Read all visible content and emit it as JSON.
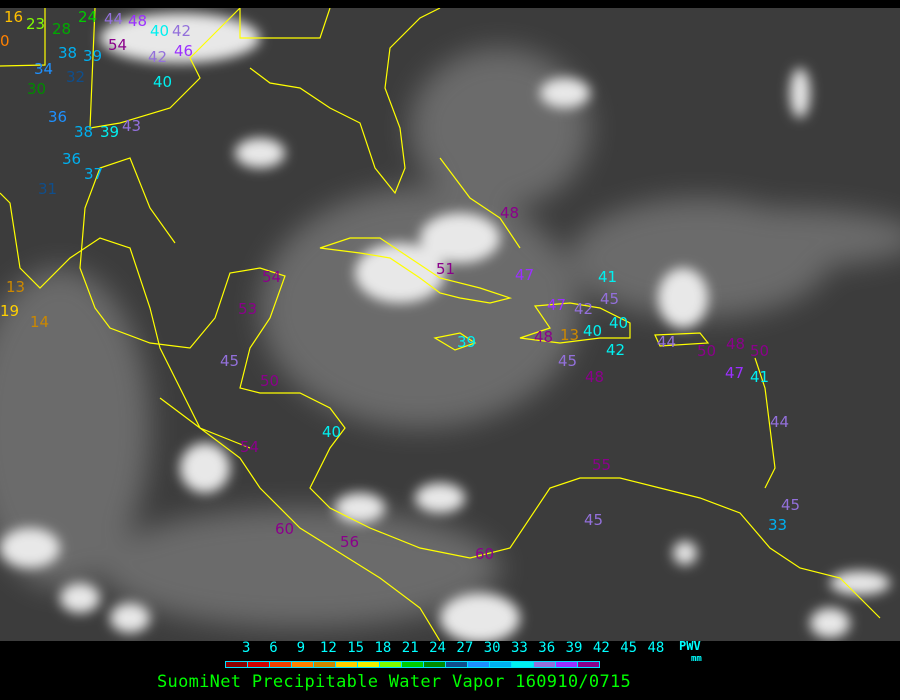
{
  "title": "SuomiNet Precipitable Water Vapor 160910/0715",
  "legend": {
    "unit_label": "PWV",
    "unit": "mm",
    "ticks": [
      "3",
      "6",
      "9",
      "12",
      "15",
      "18",
      "21",
      "24",
      "27",
      "30",
      "33",
      "36",
      "39",
      "42",
      "45",
      "48"
    ],
    "colors": [
      "#8b0000",
      "#d00000",
      "#f04000",
      "#ff8000",
      "#cc8800",
      "#ffd000",
      "#f0f000",
      "#80ff00",
      "#00cc00",
      "#008b00",
      "#104e8b",
      "#1e90ff",
      "#00b0f0",
      "#00f0f0",
      "#9370db",
      "#9b30ff",
      "#8b008b"
    ]
  },
  "map": {
    "background_color": "#3c3c3c",
    "coastline_color": "#ffff00",
    "stations": [
      {
        "v": "16",
        "c": "#ffc000"
      },
      {
        "v": "0",
        "c": "#ff8000"
      },
      {
        "v": "23",
        "c": "#80ff00"
      },
      {
        "v": "28",
        "c": "#00aa00"
      },
      {
        "v": "24",
        "c": "#00cc00"
      },
      {
        "v": "44",
        "c": "#9370db"
      },
      {
        "v": "54",
        "c": "#8b008b"
      },
      {
        "v": "48",
        "c": "#9b30ff"
      },
      {
        "v": "40",
        "c": "#00f0f0"
      },
      {
        "v": "42",
        "c": "#9370db"
      },
      {
        "v": "38",
        "c": "#00b0f0"
      },
      {
        "v": "39",
        "c": "#00b0f0"
      },
      {
        "v": "42",
        "c": "#9370db"
      },
      {
        "v": "46",
        "c": "#9b30ff"
      },
      {
        "v": "34",
        "c": "#1e90ff"
      },
      {
        "v": "32",
        "c": "#104e8b"
      },
      {
        "v": "40",
        "c": "#00f0f0"
      },
      {
        "v": "30",
        "c": "#008b00"
      },
      {
        "v": "36",
        "c": "#1e90ff"
      },
      {
        "v": "38",
        "c": "#00b0f0"
      },
      {
        "v": "39",
        "c": "#00f0f0"
      },
      {
        "v": "43",
        "c": "#9370db"
      },
      {
        "v": "36",
        "c": "#00b0f0"
      },
      {
        "v": "37",
        "c": "#00b0f0"
      },
      {
        "v": "31",
        "c": "#104e8b"
      },
      {
        "v": "13",
        "c": "#cc8800"
      },
      {
        "v": "19",
        "c": "#ffd000"
      },
      {
        "v": "14",
        "c": "#cc8800"
      },
      {
        "v": "54",
        "c": "#8b008b"
      },
      {
        "v": "53",
        "c": "#8b008b"
      },
      {
        "v": "45",
        "c": "#9370db"
      },
      {
        "v": "50",
        "c": "#8b008b"
      },
      {
        "v": "54",
        "c": "#8b008b"
      },
      {
        "v": "40",
        "c": "#00f0f0"
      },
      {
        "v": "60",
        "c": "#8b008b"
      },
      {
        "v": "56",
        "c": "#8b008b"
      },
      {
        "v": "60",
        "c": "#8b008b"
      },
      {
        "v": "55",
        "c": "#8b008b"
      },
      {
        "v": "45",
        "c": "#9370db"
      },
      {
        "v": "48",
        "c": "#8b008b"
      },
      {
        "v": "51",
        "c": "#8b008b"
      },
      {
        "v": "47",
        "c": "#9b30ff"
      },
      {
        "v": "39",
        "c": "#00f0f0"
      },
      {
        "v": "47",
        "c": "#9b30ff"
      },
      {
        "v": "42",
        "c": "#9370db"
      },
      {
        "v": "45",
        "c": "#9370db"
      },
      {
        "v": "41",
        "c": "#00f0f0"
      },
      {
        "v": "40",
        "c": "#00f0f0"
      },
      {
        "v": "40",
        "c": "#00f0f0"
      },
      {
        "v": "13",
        "c": "#cc8800"
      },
      {
        "v": "42",
        "c": "#00f0f0"
      },
      {
        "v": "48",
        "c": "#8b008b"
      },
      {
        "v": "45",
        "c": "#9370db"
      },
      {
        "v": "48",
        "c": "#8b008b"
      },
      {
        "v": "44",
        "c": "#9370db"
      },
      {
        "v": "50",
        "c": "#8b008b"
      },
      {
        "v": "48",
        "c": "#8b008b"
      },
      {
        "v": "50",
        "c": "#8b008b"
      },
      {
        "v": "41",
        "c": "#00f0f0"
      },
      {
        "v": "47",
        "c": "#9b30ff"
      },
      {
        "v": "44",
        "c": "#9370db"
      },
      {
        "v": "45",
        "c": "#9370db"
      },
      {
        "v": "33",
        "c": "#00b0f0"
      }
    ]
  }
}
